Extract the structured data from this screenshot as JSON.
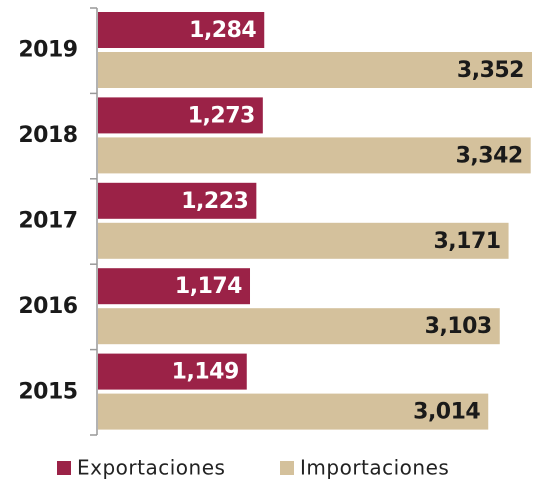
{
  "chart_data": {
    "type": "bar",
    "orientation": "horizontal",
    "categories": [
      "2019",
      "2018",
      "2017",
      "2016",
      "2015"
    ],
    "series": [
      {
        "name": "Exportaciones",
        "color": "#9b2247",
        "values": [
          1284,
          1273,
          1223,
          1174,
          1149
        ],
        "value_labels": [
          "1,284",
          "1,273",
          "1,223",
          "1,174",
          "1,149"
        ]
      },
      {
        "name": "Importaciones",
        "color": "#d4c19c",
        "values": [
          3352,
          3342,
          3171,
          3103,
          3014
        ],
        "value_labels": [
          "3,352",
          "3,342",
          "3,171",
          "3,103",
          "3,014"
        ]
      }
    ],
    "legend": "bottom"
  }
}
